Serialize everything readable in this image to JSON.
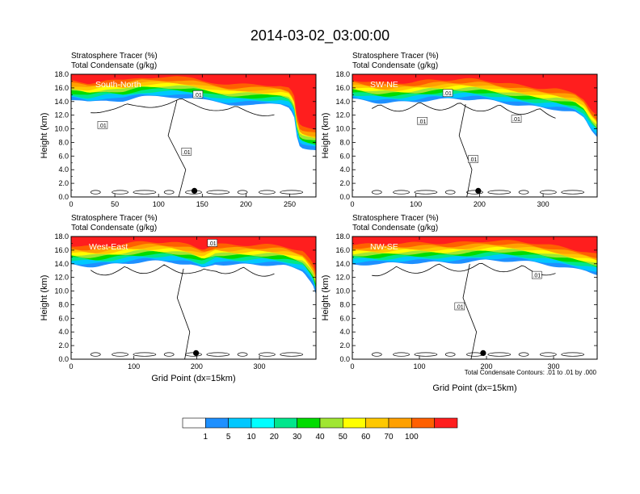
{
  "figure": {
    "title": "2014-03-02_03:00:00",
    "footnote": "Total Condensate Contours: .01 to .01 by .000",
    "ylabel": "Height (km)",
    "xlabel": "Grid Point (dx=15km)"
  },
  "colorbar": {
    "levels": [
      1,
      5,
      10,
      20,
      30,
      40,
      50,
      60,
      70,
      100
    ],
    "labels": [
      "1",
      "5",
      "10",
      "20",
      "30",
      "40",
      "50",
      "60",
      "70",
      "100"
    ],
    "colors": [
      "#ffffff",
      "#1e90ff",
      "#00c8ff",
      "#00ffff",
      "#00e68c",
      "#00dc00",
      "#a0e632",
      "#ffff00",
      "#ffc800",
      "#ffa000",
      "#ff6000",
      "#ff1e1e"
    ]
  },
  "chart_data": [
    {
      "type": "heatmap",
      "name": "South-North",
      "line1": "Stratosphere Tracer   (%)",
      "line2": "Total Condensate   (g/kg)",
      "xlim": [
        0,
        280
      ],
      "xticks": [
        0,
        50,
        100,
        150,
        200,
        250
      ],
      "xtick_labels": [
        "0",
        "50",
        "100",
        "150",
        "200",
        "250"
      ],
      "ylim": [
        0,
        18
      ],
      "yticks": [
        0,
        2,
        4,
        6,
        8,
        10,
        12,
        14,
        16,
        18
      ],
      "ytick_labels": [
        "0.0",
        "2.0",
        "4.0",
        "6.0",
        "8.0",
        "10.0",
        "12.0",
        "14.0",
        "16.0",
        "18.0"
      ],
      "contour_labels": [
        {
          "text": ".01",
          "x": 36,
          "y": 10.5
        },
        {
          "text": ".01",
          "x": 145,
          "y": 15.0
        },
        {
          "text": ".01",
          "x": 132,
          "y": 6.6
        }
      ],
      "tropopause": [
        [
          0,
          15.5
        ],
        [
          20,
          15.0
        ],
        [
          40,
          15.3
        ],
        [
          60,
          15.2
        ],
        [
          80,
          15.8
        ],
        [
          100,
          16.0
        ],
        [
          120,
          16.1
        ],
        [
          140,
          16.0
        ],
        [
          160,
          15.5
        ],
        [
          180,
          15.0
        ],
        [
          200,
          14.9
        ],
        [
          220,
          14.7
        ],
        [
          240,
          14.6
        ],
        [
          250,
          14.2
        ],
        [
          255,
          13.0
        ],
        [
          257,
          11.0
        ],
        [
          259,
          9.5
        ],
        [
          262,
          8.5
        ],
        [
          270,
          8.2
        ],
        [
          280,
          8.0
        ]
      ],
      "marker": {
        "x": 141,
        "y": 0.9
      }
    },
    {
      "type": "heatmap",
      "name": "SW-NE",
      "line1": "Stratosphere Tracer   (%)",
      "line2": "Total Condensate   (g/kg)",
      "xlim": [
        0,
        385
      ],
      "xticks": [
        0,
        100,
        200,
        300
      ],
      "xtick_labels": [
        "0",
        "100",
        "200",
        "300"
      ],
      "ylim": [
        0,
        18
      ],
      "yticks": [
        0,
        2,
        4,
        6,
        8,
        10,
        12,
        14,
        16,
        18
      ],
      "ytick_labels": [
        "0.0",
        "2.0",
        "4.0",
        "6.0",
        "8.0",
        "10.0",
        "12.0",
        "14.0",
        "16.0",
        "18.0"
      ],
      "contour_labels": [
        {
          "text": ".01",
          "x": 150,
          "y": 15.2
        },
        {
          "text": ".01",
          "x": 110,
          "y": 11.1
        },
        {
          "text": ".01",
          "x": 190,
          "y": 5.5
        },
        {
          "text": ".01",
          "x": 258,
          "y": 11.4
        }
      ],
      "tropopause": [
        [
          0,
          15.4
        ],
        [
          40,
          15.2
        ],
        [
          80,
          15.4
        ],
        [
          120,
          15.6
        ],
        [
          160,
          15.5
        ],
        [
          200,
          15.4
        ],
        [
          240,
          15.1
        ],
        [
          280,
          14.8
        ],
        [
          320,
          14.3
        ],
        [
          350,
          13.6
        ],
        [
          365,
          12.6
        ],
        [
          375,
          11.0
        ],
        [
          385,
          10.0
        ]
      ],
      "marker": {
        "x": 198,
        "y": 0.9
      }
    },
    {
      "type": "heatmap",
      "name": "West-East",
      "line1": "Stratosphere Tracer   (%)",
      "line2": "Total Condensate   (g/kg)",
      "xlim": [
        0,
        390
      ],
      "xticks": [
        0,
        100,
        200,
        300
      ],
      "xtick_labels": [
        "0",
        "100",
        "200",
        "300"
      ],
      "ylim": [
        0,
        18
      ],
      "yticks": [
        0,
        2,
        4,
        6,
        8,
        10,
        12,
        14,
        16,
        18
      ],
      "ytick_labels": [
        "0.0",
        "2.0",
        "4.0",
        "6.0",
        "8.0",
        "10.0",
        "12.0",
        "14.0",
        "16.0",
        "18.0"
      ],
      "contour_labels": [
        {
          "text": ".01",
          "x": 225,
          "y": 17.0
        }
      ],
      "tropopause": [
        [
          0,
          15.3
        ],
        [
          40,
          15.1
        ],
        [
          80,
          15.2
        ],
        [
          120,
          15.4
        ],
        [
          160,
          15.5
        ],
        [
          190,
          15.3
        ],
        [
          210,
          14.8
        ],
        [
          230,
          15.5
        ],
        [
          260,
          15.2
        ],
        [
          300,
          15.0
        ],
        [
          340,
          14.8
        ],
        [
          370,
          14.2
        ],
        [
          385,
          12.5
        ],
        [
          390,
          11.0
        ]
      ],
      "marker": {
        "x": 199,
        "y": 0.9
      }
    },
    {
      "type": "heatmap",
      "name": "NW-SE",
      "line1": "Stratosphere Tracer   (%)",
      "line2": "Total Condensate   (g/kg)",
      "xlim": [
        0,
        365
      ],
      "xticks": [
        0,
        100,
        200,
        300
      ],
      "xtick_labels": [
        "0",
        "100",
        "200",
        "300"
      ],
      "ylim": [
        0,
        18
      ],
      "yticks": [
        0,
        2,
        4,
        6,
        8,
        10,
        12,
        14,
        16,
        18
      ],
      "ytick_labels": [
        "0.0",
        "2.0",
        "4.0",
        "6.0",
        "8.0",
        "10.0",
        "12.0",
        "14.0",
        "16.0",
        "18.0"
      ],
      "contour_labels": [
        {
          "text": ".01",
          "x": 160,
          "y": 7.7
        },
        {
          "text": ".01",
          "x": 275,
          "y": 12.3
        }
      ],
      "tropopause": [
        [
          0,
          15.2
        ],
        [
          40,
          15.0
        ],
        [
          80,
          15.3
        ],
        [
          120,
          15.6
        ],
        [
          160,
          15.7
        ],
        [
          200,
          15.8
        ],
        [
          240,
          15.5
        ],
        [
          280,
          15.2
        ],
        [
          320,
          14.8
        ],
        [
          350,
          14.4
        ],
        [
          365,
          14.0
        ]
      ],
      "marker": {
        "x": 195,
        "y": 0.9
      }
    }
  ]
}
